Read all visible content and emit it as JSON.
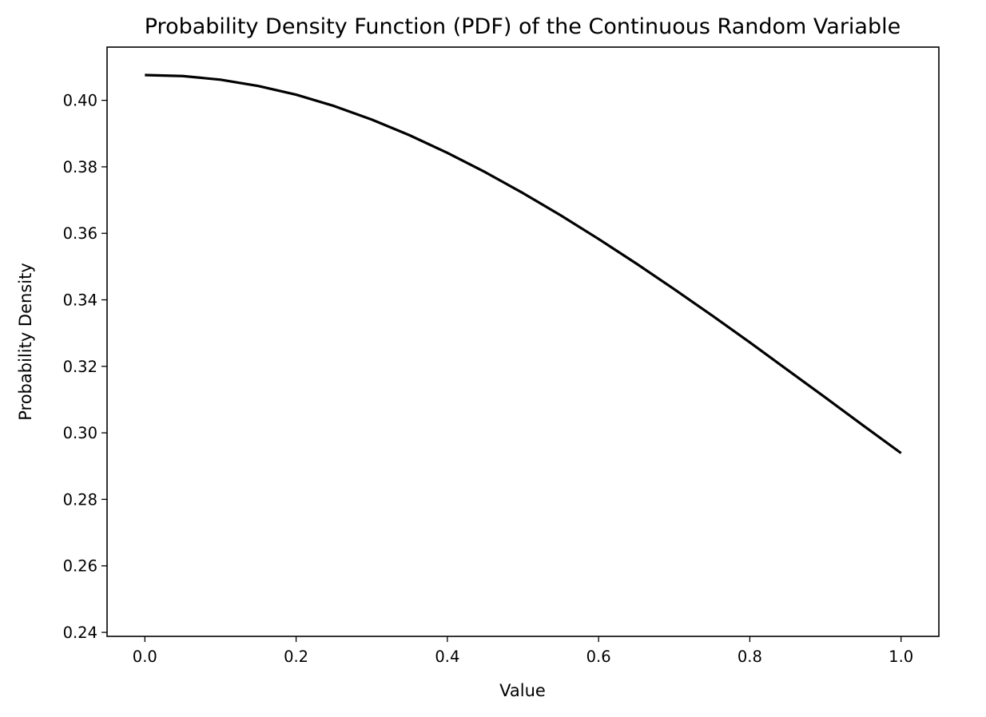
{
  "chart_data": {
    "type": "line",
    "title": "Probability Density Function (PDF) of the Continuous Random Variable",
    "xlabel": "Value",
    "ylabel": "Probability Density",
    "xlim": [
      -0.05,
      1.05
    ],
    "ylim": [
      0.2388,
      0.416
    ],
    "xticks": [
      0.0,
      0.2,
      0.4,
      0.6,
      0.8,
      1.0
    ],
    "xtick_labels": [
      "0.0",
      "0.2",
      "0.4",
      "0.6",
      "0.8",
      "1.0"
    ],
    "yticks": [
      0.24,
      0.26,
      0.28,
      0.3,
      0.32,
      0.34,
      0.36,
      0.38,
      0.4
    ],
    "ytick_labels": [
      "0.24",
      "0.26",
      "0.28",
      "0.30",
      "0.32",
      "0.34",
      "0.36",
      "0.38",
      "0.40"
    ],
    "grid": false,
    "series": [
      {
        "color": "#000000",
        "x": [
          0.0,
          0.05,
          0.1,
          0.15,
          0.2,
          0.25,
          0.3,
          0.35,
          0.4,
          0.45,
          0.5,
          0.55,
          0.6,
          0.65,
          0.7,
          0.75,
          0.8,
          0.85,
          0.9,
          0.95,
          1.0
        ],
        "y": [
          0.4076,
          0.4073,
          0.4062,
          0.4043,
          0.4017,
          0.3983,
          0.3942,
          0.3895,
          0.3842,
          0.3784,
          0.3721,
          0.3654,
          0.3583,
          0.3509,
          0.3432,
          0.3353,
          0.3272,
          0.3189,
          0.3106,
          0.3022,
          0.2939
        ]
      }
    ]
  }
}
